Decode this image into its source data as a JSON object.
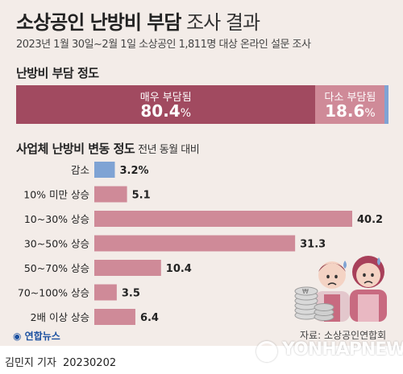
{
  "header": {
    "title_bold": "소상공인 난방비 부담",
    "title_light": "조사 결과",
    "subtitle": "2023년 1월 30일~2월 1일 소상공인 1,811명 대상 온라인 설문 조사"
  },
  "section1": {
    "title": "난방비 부담 정도",
    "segments": [
      {
        "label": "매우 부담됨",
        "value": "80.4",
        "unit": "%",
        "share": 80.4,
        "color": "#a14a60"
      },
      {
        "label": "다소 부담됨",
        "value": "18.6",
        "unit": "%",
        "share": 18.6,
        "color": "#cf8a98"
      },
      {
        "label": "",
        "value": "",
        "unit": "",
        "share": 1.0,
        "color": "#7fa3d4"
      }
    ]
  },
  "section2": {
    "title": "사업체 난방비 변동 정도",
    "note": "전년 동월 대비"
  },
  "chart_data": {
    "type": "bar",
    "orientation": "horizontal",
    "categories": [
      "감소",
      "10% 미만 상승",
      "10~30% 상승",
      "30~50% 상승",
      "50~70% 상승",
      "70~100% 상승",
      "2배 이상 상승"
    ],
    "values": [
      3.2,
      5.1,
      40.2,
      31.3,
      10.4,
      3.5,
      6.4
    ],
    "value_labels": [
      "3.2%",
      "5.1",
      "40.2",
      "31.3",
      "10.4",
      "3.5",
      "6.4"
    ],
    "colors": [
      "#7fa3d4",
      "#cf8a98",
      "#cf8a98",
      "#cf8a98",
      "#cf8a98",
      "#cf8a98",
      "#cf8a98"
    ],
    "xlim": [
      0,
      40.2
    ],
    "grid": false,
    "title": "",
    "xlabel": "",
    "ylabel": ""
  },
  "footer": {
    "source": "자료: 소상공인연합회",
    "logo": "연합뉴스",
    "byline": "김민지 기자",
    "date": "20230202",
    "watermark": "YONHAPNEWS"
  },
  "icons": {
    "illustration": "worried-shopkeepers-with-coins-icon",
    "logo": "yonhap-logo-icon"
  }
}
